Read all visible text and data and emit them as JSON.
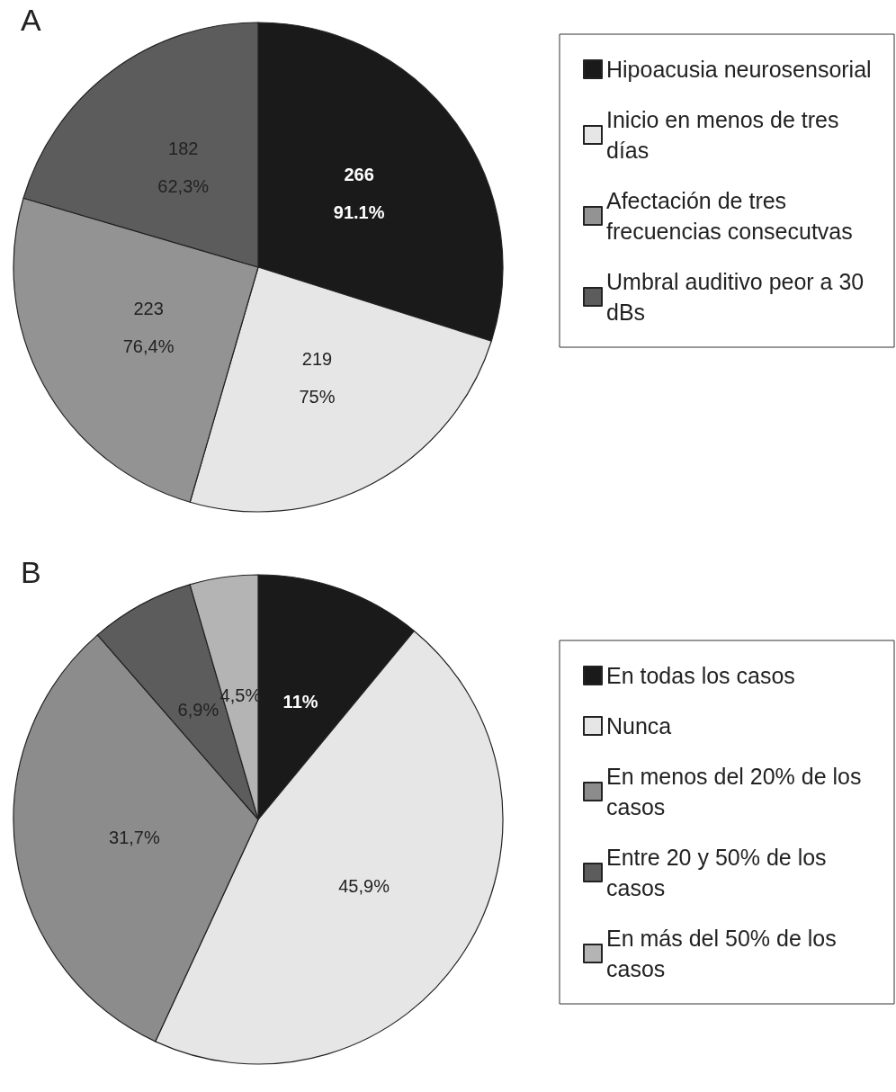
{
  "chart_data": [
    {
      "type": "pie",
      "title": "A",
      "categories": [
        "Hipoacusia neurosensorial",
        "Inicio en menos de tres días",
        "Afectación de tres frecuencias consecutvas",
        "Umbral auditivo peor a 30 dBs"
      ],
      "values": [
        266,
        219,
        223,
        182
      ],
      "colors": [
        "#1a1a1a",
        "#e6e6e6",
        "#939393",
        "#5c5c5c"
      ],
      "value_labels": [
        "266\n91.1%",
        "219\n75%",
        "223\n76,4%",
        "182\n62,3%"
      ],
      "legend": "top right"
    },
    {
      "type": "pie",
      "title": "B",
      "categories": [
        "En todas los casos",
        "Nunca",
        "En menos del 20% de los casos",
        "Entre 20 y 50% de los casos",
        "En más del 50% de los casos"
      ],
      "values": [
        11,
        45.9,
        31.7,
        6.9,
        4.5
      ],
      "colors": [
        "#1a1a1a",
        "#e6e6e6",
        "#8c8c8c",
        "#5c5c5c",
        "#b4b4b4"
      ],
      "value_labels": [
        "11%",
        "45,9%",
        "31,7%",
        "6,9%",
        "4,5%"
      ],
      "legend": "right"
    }
  ]
}
